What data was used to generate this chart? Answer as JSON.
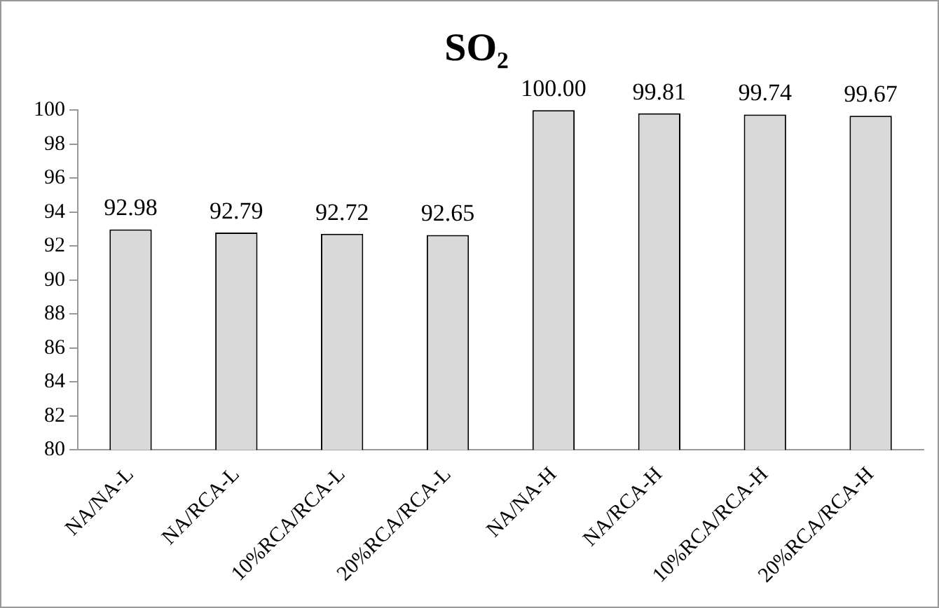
{
  "chart_data": {
    "type": "bar",
    "title": "SO₂",
    "categories": [
      "NA/NA-L",
      "NA/RCA-L",
      "10%RCA/RCA-L",
      "20%RCA/RCA-L",
      "NA/NA-H",
      "NA/RCA-H",
      "10%RCA/RCA-H",
      "20%RCA/RCA-H"
    ],
    "values": [
      92.98,
      92.79,
      92.72,
      92.65,
      100,
      99.81,
      99.74,
      99.67
    ],
    "value_labels": [
      "92.98",
      "92.79",
      "92.72",
      "92.65",
      "100.00",
      "99.81",
      "99.74",
      "99.67"
    ],
    "color": "#d9d9d9",
    "ylim": [
      80,
      100
    ],
    "yticks": [
      80,
      82,
      84,
      86,
      88,
      90,
      92,
      94,
      96,
      98,
      100
    ],
    "grid": false,
    "legend": false
  }
}
